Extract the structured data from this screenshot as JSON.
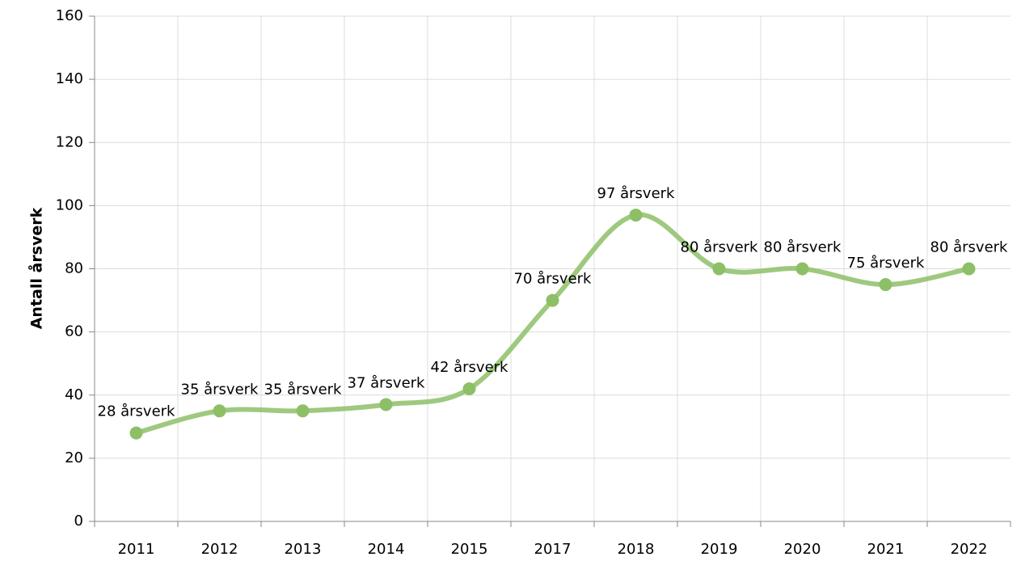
{
  "chart_data": {
    "type": "line",
    "y_label": "Antall årsverk",
    "categories": [
      "2011",
      "2012",
      "2013",
      "2014",
      "2015",
      "2017",
      "2018",
      "2019",
      "2020",
      "2021",
      "2022"
    ],
    "series": [
      {
        "color": "#8dbf67",
        "values": [
          28,
          35,
          35,
          37,
          42,
          70,
          97,
          80,
          80,
          75,
          80
        ],
        "value_labels": [
          "28 årsverk",
          "35 årsverk",
          "35 årsverk",
          "37 årsverk",
          "42 årsverk",
          "70 årsverk",
          "97 årsverk",
          "80 årsverk",
          "80 årsverk",
          "75 årsverk",
          "80 årsverk"
        ]
      }
    ],
    "ylim": [
      0,
      160
    ],
    "yticks": [
      0,
      20,
      40,
      60,
      80,
      100,
      120,
      140,
      160
    ],
    "grid": true,
    "smooth": true
  }
}
